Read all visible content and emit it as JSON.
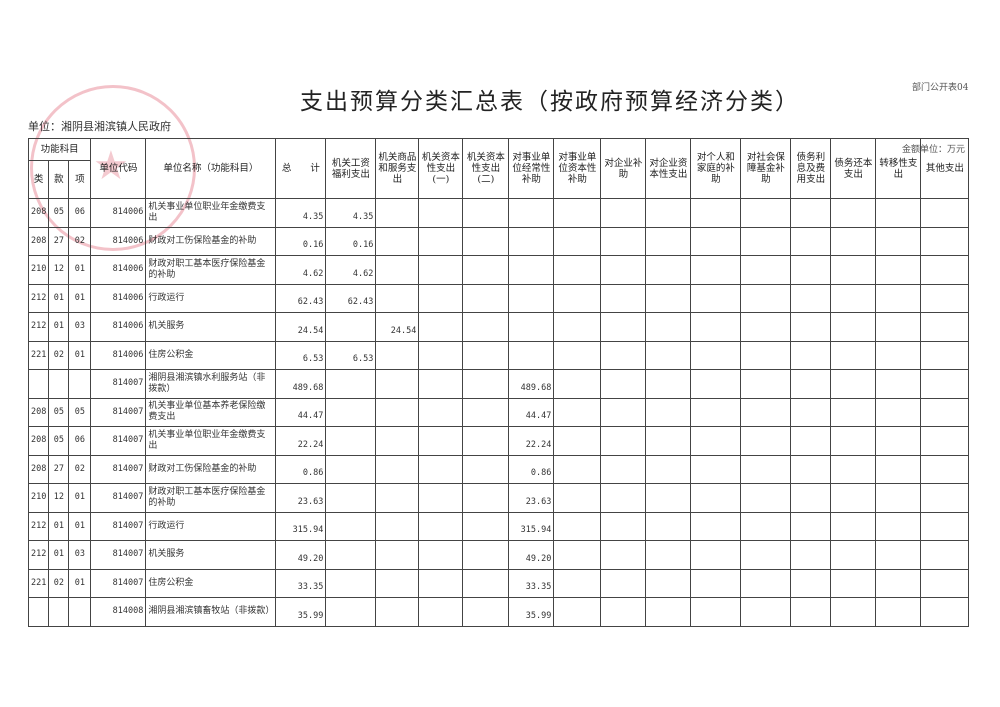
{
  "title": "支出预算分类汇总表（按政府预算经济分类）",
  "form_no": "部门公开表04",
  "unit": "单位：湘阴县湘滨镇人民政府",
  "money_unit": "金额单位：万元",
  "stamp_icon": "red-official-seal",
  "headers": {
    "func": "功能科目",
    "lei": "类",
    "kuan": "款",
    "xiang": "项",
    "code": "单位代码",
    "name": "单位名称（功能科目）",
    "total": "总　　计",
    "cols": [
      "机关工资福利支出",
      "机关商品和服务支出",
      "机关资本性支出(一)",
      "机关资本性支出(二)",
      "对事业单位经常性补助",
      "对事业单位资本性补助",
      "对企业补助",
      "对企业资本性支出",
      "对个人和家庭的补助",
      "对社会保障基金补助",
      "债务利息及费用支出",
      "债务还本支出",
      "转移性支出",
      "其他支出"
    ]
  },
  "rows": [
    {
      "lei": "208",
      "kuan": "05",
      "xiang": "06",
      "code": "814006",
      "name": "机关事业单位职业年金缴费支出",
      "total": "4.35",
      "vals": [
        "4.35",
        "",
        "",
        "",
        "",
        "",
        "",
        "",
        "",
        "",
        "",
        "",
        "",
        ""
      ]
    },
    {
      "lei": "208",
      "kuan": "27",
      "xiang": "02",
      "code": "814006",
      "name": "财政对工伤保险基金的补助",
      "total": "0.16",
      "vals": [
        "0.16",
        "",
        "",
        "",
        "",
        "",
        "",
        "",
        "",
        "",
        "",
        "",
        "",
        ""
      ]
    },
    {
      "lei": "210",
      "kuan": "12",
      "xiang": "01",
      "code": "814006",
      "name": "财政对职工基本医疗保险基金的补助",
      "total": "4.62",
      "vals": [
        "4.62",
        "",
        "",
        "",
        "",
        "",
        "",
        "",
        "",
        "",
        "",
        "",
        "",
        ""
      ]
    },
    {
      "lei": "212",
      "kuan": "01",
      "xiang": "01",
      "code": "814006",
      "name": "行政运行",
      "total": "62.43",
      "vals": [
        "62.43",
        "",
        "",
        "",
        "",
        "",
        "",
        "",
        "",
        "",
        "",
        "",
        "",
        ""
      ]
    },
    {
      "lei": "212",
      "kuan": "01",
      "xiang": "03",
      "code": "814006",
      "name": "机关服务",
      "total": "24.54",
      "vals": [
        "",
        "24.54",
        "",
        "",
        "",
        "",
        "",
        "",
        "",
        "",
        "",
        "",
        "",
        ""
      ]
    },
    {
      "lei": "221",
      "kuan": "02",
      "xiang": "01",
      "code": "814006",
      "name": "住房公积金",
      "total": "6.53",
      "vals": [
        "6.53",
        "",
        "",
        "",
        "",
        "",
        "",
        "",
        "",
        "",
        "",
        "",
        "",
        ""
      ]
    },
    {
      "lei": "",
      "kuan": "",
      "xiang": "",
      "code": "814007",
      "name": "湘阴县湘滨镇水利服务站（非拨款）",
      "total": "489.68",
      "vals": [
        "",
        "",
        "",
        "",
        "489.68",
        "",
        "",
        "",
        "",
        "",
        "",
        "",
        "",
        ""
      ]
    },
    {
      "lei": "208",
      "kuan": "05",
      "xiang": "05",
      "code": "814007",
      "name": "机关事业单位基本养老保险缴费支出",
      "total": "44.47",
      "vals": [
        "",
        "",
        "",
        "",
        "44.47",
        "",
        "",
        "",
        "",
        "",
        "",
        "",
        "",
        ""
      ]
    },
    {
      "lei": "208",
      "kuan": "05",
      "xiang": "06",
      "code": "814007",
      "name": "机关事业单位职业年金缴费支出",
      "total": "22.24",
      "vals": [
        "",
        "",
        "",
        "",
        "22.24",
        "",
        "",
        "",
        "",
        "",
        "",
        "",
        "",
        ""
      ]
    },
    {
      "lei": "208",
      "kuan": "27",
      "xiang": "02",
      "code": "814007",
      "name": "财政对工伤保险基金的补助",
      "total": "0.86",
      "vals": [
        "",
        "",
        "",
        "",
        "0.86",
        "",
        "",
        "",
        "",
        "",
        "",
        "",
        "",
        ""
      ]
    },
    {
      "lei": "210",
      "kuan": "12",
      "xiang": "01",
      "code": "814007",
      "name": "财政对职工基本医疗保险基金的补助",
      "total": "23.63",
      "vals": [
        "",
        "",
        "",
        "",
        "23.63",
        "",
        "",
        "",
        "",
        "",
        "",
        "",
        "",
        ""
      ]
    },
    {
      "lei": "212",
      "kuan": "01",
      "xiang": "01",
      "code": "814007",
      "name": "行政运行",
      "total": "315.94",
      "vals": [
        "",
        "",
        "",
        "",
        "315.94",
        "",
        "",
        "",
        "",
        "",
        "",
        "",
        "",
        ""
      ]
    },
    {
      "lei": "212",
      "kuan": "01",
      "xiang": "03",
      "code": "814007",
      "name": "机关服务",
      "total": "49.20",
      "vals": [
        "",
        "",
        "",
        "",
        "49.20",
        "",
        "",
        "",
        "",
        "",
        "",
        "",
        "",
        ""
      ]
    },
    {
      "lei": "221",
      "kuan": "02",
      "xiang": "01",
      "code": "814007",
      "name": "住房公积金",
      "total": "33.35",
      "vals": [
        "",
        "",
        "",
        "",
        "33.35",
        "",
        "",
        "",
        "",
        "",
        "",
        "",
        "",
        ""
      ]
    },
    {
      "lei": "",
      "kuan": "",
      "xiang": "",
      "code": "814008",
      "name": "湘阴县湘滨镇畜牧站（非拨款）",
      "total": "35.99",
      "vals": [
        "",
        "",
        "",
        "",
        "35.99",
        "",
        "",
        "",
        "",
        "",
        "",
        "",
        "",
        ""
      ]
    }
  ]
}
